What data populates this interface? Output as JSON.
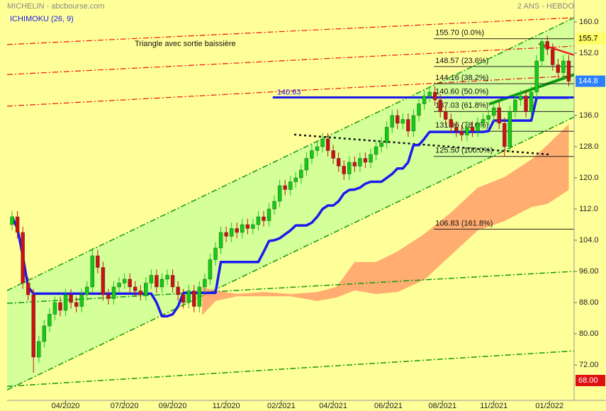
{
  "chart_data": {
    "type": "candlestick",
    "source": "MICHELIN - abcbourse.com",
    "period": "2 ANS - HEBDO",
    "indicator": "ICHIMOKU (26, 9)",
    "title": "Triangle  avec sortie baissière",
    "xlim": [
      -0.93,
      105
    ],
    "xticks": [
      {
        "value": 10,
        "label": "04/2020"
      },
      {
        "value": 21,
        "label": "07/2020"
      },
      {
        "value": 30,
        "label": "09/2020"
      },
      {
        "value": 40,
        "label": "11/2020"
      },
      {
        "value": 50.3,
        "label": "02/2021"
      },
      {
        "value": 60,
        "label": "04/2021"
      },
      {
        "value": 70.3,
        "label": "06/2021"
      },
      {
        "value": 80.4,
        "label": "08/2021"
      },
      {
        "value": 90,
        "label": "11/2021"
      },
      {
        "value": 100.4,
        "label": "01/2022"
      }
    ],
    "ylim": [
      62.9,
      162
    ],
    "yticks": [
      {
        "value": 72,
        "label": "72.00"
      },
      {
        "value": 80,
        "label": "80.00"
      },
      {
        "value": 88,
        "label": "88.00"
      },
      {
        "value": 96,
        "label": "96.00"
      },
      {
        "value": 104,
        "label": "104.0"
      },
      {
        "value": 112,
        "label": "112.0"
      },
      {
        "value": 120,
        "label": "120.0"
      },
      {
        "value": 128,
        "label": "128.0"
      },
      {
        "value": 136,
        "label": "136.0"
      },
      {
        "value": 152,
        "label": "152.0"
      },
      {
        "value": 160,
        "label": "160.0"
      }
    ],
    "up_color": "#11cc11",
    "down_color": "#cc1111",
    "candles": [
      [
        108,
        111.5,
        106.5,
        110
      ],
      [
        110,
        111.5,
        104.5,
        106
      ],
      [
        106,
        107.5,
        91.5,
        93
      ],
      [
        93,
        94.5,
        88.5,
        90
      ],
      [
        90,
        91.5,
        70,
        74
      ],
      [
        74,
        79.5,
        72.5,
        78
      ],
      [
        78,
        83.5,
        76.5,
        82
      ],
      [
        82,
        86.5,
        80.5,
        85
      ],
      [
        85,
        89.5,
        83.5,
        88
      ],
      [
        88,
        89.5,
        84.5,
        86
      ],
      [
        86,
        91.5,
        84.5,
        90
      ],
      [
        90,
        91.5,
        86.5,
        88
      ],
      [
        88,
        89.5,
        85.5,
        87
      ],
      [
        87,
        91.5,
        85.5,
        90
      ],
      [
        90,
        93.5,
        88.5,
        92
      ],
      [
        92,
        102,
        90.5,
        100
      ],
      [
        100,
        101.5,
        95.5,
        97
      ],
      [
        97,
        98.5,
        88.5,
        90
      ],
      [
        90,
        91.5,
        87.5,
        89
      ],
      [
        89,
        93.5,
        87.5,
        92
      ],
      [
        92,
        94.5,
        90.5,
        93
      ],
      [
        93,
        95.5,
        91.5,
        94
      ],
      [
        94,
        95.5,
        90.5,
        92
      ],
      [
        92,
        93.5,
        89.5,
        91
      ],
      [
        91,
        92.5,
        88.5,
        90
      ],
      [
        90,
        94.5,
        88.5,
        93
      ],
      [
        93,
        96.5,
        91.5,
        95
      ],
      [
        95,
        96.5,
        90.5,
        92
      ],
      [
        92,
        95.5,
        90.5,
        94
      ],
      [
        94,
        96.5,
        92.5,
        95
      ],
      [
        95,
        96.5,
        90.5,
        92
      ],
      [
        92,
        93.5,
        88.5,
        90
      ],
      [
        90,
        91.5,
        86.5,
        88
      ],
      [
        88,
        92.5,
        86.5,
        91
      ],
      [
        91,
        92.5,
        85.5,
        87
      ],
      [
        87,
        93.5,
        85.5,
        92
      ],
      [
        92,
        95.5,
        90.5,
        94
      ],
      [
        94,
        100.5,
        92.5,
        99
      ],
      [
        99,
        103.5,
        97.5,
        102
      ],
      [
        102,
        107.5,
        100.5,
        106
      ],
      [
        106,
        107.5,
        103.5,
        105
      ],
      [
        105,
        108.5,
        103.5,
        107
      ],
      [
        107,
        108.5,
        104.5,
        106
      ],
      [
        106,
        109.5,
        104.5,
        108
      ],
      [
        108,
        109.5,
        105.5,
        107
      ],
      [
        107,
        109.5,
        105.5,
        108
      ],
      [
        108,
        111.5,
        106.5,
        110
      ],
      [
        110,
        111.5,
        107.5,
        109
      ],
      [
        109,
        113.5,
        107.5,
        112
      ],
      [
        112,
        115.5,
        110.5,
        114
      ],
      [
        114,
        119.5,
        112.5,
        118
      ],
      [
        118,
        119.5,
        115.5,
        117
      ],
      [
        117,
        120.5,
        115.5,
        119
      ],
      [
        119,
        121.5,
        117.5,
        120
      ],
      [
        120,
        123.5,
        118.5,
        122
      ],
      [
        122,
        126.5,
        120.5,
        125
      ],
      [
        125,
        128.5,
        123.5,
        127
      ],
      [
        127,
        129.5,
        125.5,
        128
      ],
      [
        128,
        131.5,
        126.5,
        130
      ],
      [
        130,
        131.5,
        125.5,
        127
      ],
      [
        127,
        128.5,
        123.5,
        125
      ],
      [
        125,
        126.5,
        121.5,
        123
      ],
      [
        123,
        124.5,
        119.5,
        121
      ],
      [
        121,
        125.5,
        119.5,
        124
      ],
      [
        124,
        125.5,
        121.5,
        123
      ],
      [
        123,
        126.5,
        121.5,
        125
      ],
      [
        125,
        126.5,
        122.5,
        124
      ],
      [
        124,
        127.5,
        122.5,
        126
      ],
      [
        126,
        129.5,
        124.5,
        128
      ],
      [
        128,
        130.5,
        126.5,
        129
      ],
      [
        129,
        134.5,
        127.5,
        133
      ],
      [
        133,
        137.5,
        131.5,
        136
      ],
      [
        136,
        137.5,
        132.5,
        134
      ],
      [
        134,
        136.5,
        132.5,
        135
      ],
      [
        135,
        136.5,
        130.5,
        132
      ],
      [
        132,
        137.5,
        130.5,
        136
      ],
      [
        136,
        140.5,
        134.5,
        139
      ],
      [
        139,
        142.5,
        137.5,
        141
      ],
      [
        141,
        143.5,
        139.5,
        142
      ],
      [
        142,
        143.5,
        138.5,
        140
      ],
      [
        140,
        141.5,
        135.5,
        137
      ],
      [
        137,
        138.5,
        133.5,
        135
      ],
      [
        135,
        136.5,
        131.5,
        133
      ],
      [
        133,
        134.5,
        130.5,
        132
      ],
      [
        132,
        133.5,
        129.5,
        131
      ],
      [
        131,
        134.5,
        129.5,
        133
      ],
      [
        133,
        134.5,
        130.5,
        132
      ],
      [
        132,
        135.5,
        130.5,
        134
      ],
      [
        134,
        136.5,
        132.5,
        135
      ],
      [
        135,
        137.5,
        133.5,
        136
      ],
      [
        136,
        139.5,
        134.5,
        138
      ],
      [
        138,
        139.5,
        132.5,
        134
      ],
      [
        134,
        135.5,
        125.5,
        128
      ],
      [
        128,
        138.5,
        126.5,
        137
      ],
      [
        137,
        141.5,
        135.5,
        140
      ],
      [
        140,
        142.5,
        138.5,
        141
      ],
      [
        141,
        142.5,
        135.5,
        137
      ],
      [
        137,
        143.5,
        135.5,
        142
      ],
      [
        142,
        151.5,
        140.5,
        150
      ],
      [
        150,
        155.7,
        148.5,
        155
      ],
      [
        155,
        156.5,
        151.5,
        153
      ],
      [
        153,
        154.5,
        147.5,
        149
      ],
      [
        149,
        150.5,
        145.5,
        147
      ],
      [
        147,
        151.5,
        145.5,
        150
      ],
      [
        150,
        151.5,
        143.5,
        144.8
      ]
    ],
    "kijun": {
      "color": "#1a1aee",
      "values": [
        110,
        107,
        100,
        92,
        90.3,
        90.3,
        90.3,
        90.3,
        90.3,
        90.3,
        90.3,
        90.3,
        90.3,
        90.3,
        90.3,
        90.3,
        90.3,
        90.3,
        90.3,
        90.3,
        90.3,
        90.3,
        90.3,
        90.3,
        90.3,
        90.3,
        90.3,
        88,
        84.5,
        84.5,
        85,
        87,
        90.5,
        90.5,
        90.5,
        90.5,
        90.5,
        90.5,
        90.5,
        98.4,
        98.4,
        98.4,
        98.4,
        98.4,
        98.4,
        98.4,
        98.4,
        101,
        103.8,
        104,
        104.5,
        105.5,
        106.5,
        107.8,
        107.8,
        107.8,
        108.5,
        110,
        112,
        112.9,
        112.9,
        114,
        116,
        116.9,
        117,
        117.5,
        118.5,
        119,
        119,
        119,
        120,
        121,
        122.4,
        122.4,
        124,
        128.4,
        128.4,
        130,
        131.8,
        131.8,
        131.8,
        131.8,
        131.8,
        131.8,
        131.8,
        131.8,
        131.8,
        131.8,
        131.8,
        132,
        134.7,
        134.7,
        134.7,
        134.7,
        134.7,
        134.7,
        134.7,
        134.7,
        140.6,
        140.6,
        140.6,
        140.6,
        140.6,
        140.6,
        140.6
      ]
    },
    "cloud": {
      "color": "#ff9966",
      "x": [
        35.5,
        38,
        42,
        47,
        52,
        57,
        60.6,
        64,
        68,
        72,
        77,
        82,
        87,
        92,
        97,
        100,
        104
      ],
      "upper": [
        92,
        91.1,
        90.2,
        90.7,
        90.2,
        90.7,
        92,
        98.4,
        98.4,
        101.1,
        105.6,
        111.1,
        117.5,
        120.2,
        124.7,
        128.4,
        133.8
      ],
      "lower": [
        84.7,
        88.4,
        89.6,
        89.6,
        89.6,
        88.4,
        89.3,
        91.1,
        90.2,
        90.7,
        93.8,
        100.2,
        106.5,
        108.9,
        112.5,
        113.3,
        116.9
      ]
    },
    "channel": {
      "color": "#ccff99",
      "line_color": "#119911",
      "x": [
        -0.93,
        105
      ],
      "upper": [
        91.1,
        161.1
      ],
      "lower": [
        65.6,
        135.6
      ]
    },
    "trendlines": [
      {
        "x": [
          -0.93,
          105
        ],
        "values": [
          87.8,
          96
        ],
        "color": "#119911",
        "style": "dashdot",
        "width": 1.5
      },
      {
        "x": [
          -0.93,
          105
        ],
        "values": [
          66.5,
          75.6
        ],
        "color": "#119911",
        "style": "dashdot",
        "width": 1.5
      },
      {
        "x": [
          -0.93,
          105
        ],
        "values": [
          154.2,
          161.1
        ],
        "color": "#ee1111",
        "style": "dashdot",
        "width": 1.2
      },
      {
        "x": [
          -0.93,
          105
        ],
        "values": [
          146.5,
          153.8
        ],
        "color": "#ee1111",
        "style": "dashdot",
        "width": 1.2
      },
      {
        "x": [
          -0.93,
          105
        ],
        "values": [
          138.4,
          146.2
        ],
        "color": "#ee1111",
        "style": "dashdot",
        "width": 1.2
      },
      {
        "x": [
          52.7,
          100.4
        ],
        "values": [
          131.1,
          126
        ],
        "color": "#111111",
        "style": "dotted",
        "width": 2.5
      },
      {
        "x": [
          89.1,
          105
        ],
        "values": [
          138.9,
          146.5
        ],
        "color": "#119911",
        "style": "solid",
        "width": 4
      },
      {
        "x": [
          98.4,
          105
        ],
        "values": [
          154.4,
          151.5
        ],
        "color": "#ee2222",
        "style": "solid",
        "width": 2.5
      }
    ],
    "support": {
      "value": 140.63,
      "x": [
        48.7,
        105
      ],
      "color": "#1a1aee"
    },
    "fibonacci": {
      "x": [
        78.8,
        105
      ],
      "levels": [
        {
          "value": 155.7,
          "label": "155.70  (0.0%)"
        },
        {
          "value": 148.57,
          "label": "148.57  (23.6%)"
        },
        {
          "value": 144.16,
          "label": "144.16  (38.2%)"
        },
        {
          "value": 140.6,
          "label": "140.60  (50.0%)"
        },
        {
          "value": 137.03,
          "label": "137.03  (61.8%)"
        },
        {
          "value": 131.96,
          "label": "131.96  (78.6%)"
        },
        {
          "value": 125.5,
          "label": "125.50  (100.0%)"
        },
        {
          "value": 106.83,
          "label": "106.83  (161.8%)"
        }
      ]
    },
    "price_tags": [
      {
        "value": 155.7,
        "color": "#ffff66",
        "text_color": "#000000"
      },
      {
        "value": 144.8,
        "color": "#2a7fff",
        "text_color": "#ffffff"
      },
      {
        "value": 68,
        "label": "68.00",
        "color": "#dd1111",
        "text_color": "#ffffff"
      }
    ]
  }
}
